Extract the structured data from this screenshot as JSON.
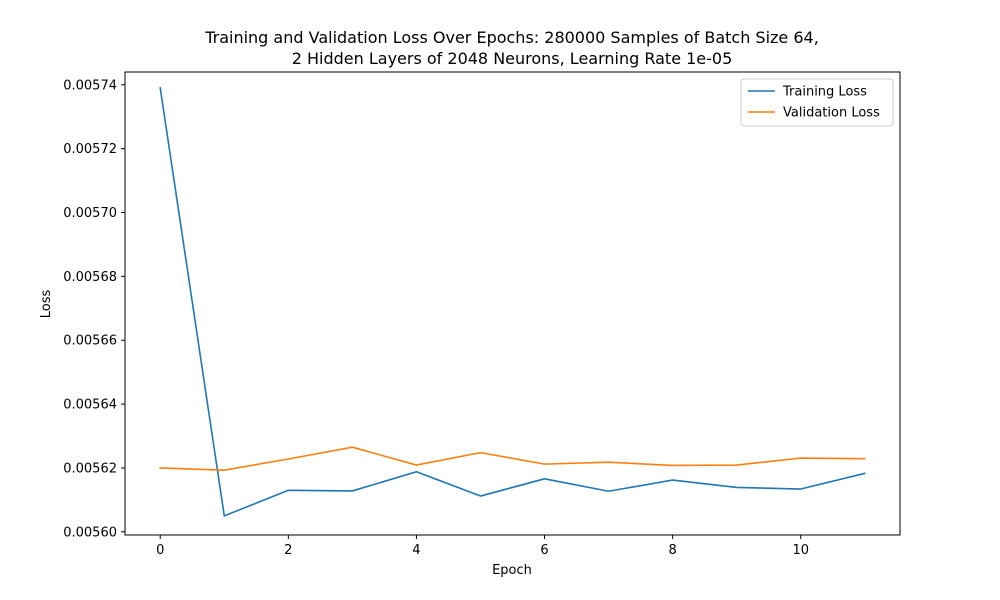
{
  "chart_data": {
    "type": "line",
    "title_lines": [
      "Training and Validation Loss Over Epochs: 280000 Samples of Batch Size 64,",
      "2 Hidden Layers of 2048 Neurons, Learning Rate 1e-05"
    ],
    "xlabel": "Epoch",
    "ylabel": "Loss",
    "xlim": [
      -0.55,
      11.55
    ],
    "ylim": [
      0.005599,
      0.005744
    ],
    "xticks": [
      0,
      2,
      4,
      6,
      8,
      10
    ],
    "xtick_labels": [
      "0",
      "2",
      "4",
      "6",
      "8",
      "10"
    ],
    "yticks": [
      0.0056,
      0.00562,
      0.00564,
      0.00566,
      0.00568,
      0.0057,
      0.00572,
      0.00574
    ],
    "ytick_labels": [
      "0.00560",
      "0.00562",
      "0.00564",
      "0.00566",
      "0.00568",
      "0.00570",
      "0.00572",
      "0.00574"
    ],
    "grid": false,
    "legend_position": "top-right",
    "x": [
      0,
      1,
      2,
      3,
      4,
      5,
      6,
      7,
      8,
      9,
      10,
      11
    ],
    "series": [
      {
        "name": "Training Loss",
        "color": "#1f77b4",
        "values": [
          0.005739,
          0.005605,
          0.005613,
          0.0056128,
          0.0056188,
          0.0056112,
          0.0056166,
          0.0056127,
          0.0056162,
          0.0056139,
          0.0056134,
          0.0056183
        ]
      },
      {
        "name": "Validation Loss",
        "color": "#ff7f0e",
        "values": [
          0.00562,
          0.0056193,
          0.0056228,
          0.0056265,
          0.0056209,
          0.0056248,
          0.0056212,
          0.0056218,
          0.0056208,
          0.0056209,
          0.0056231,
          0.0056229
        ]
      }
    ]
  }
}
